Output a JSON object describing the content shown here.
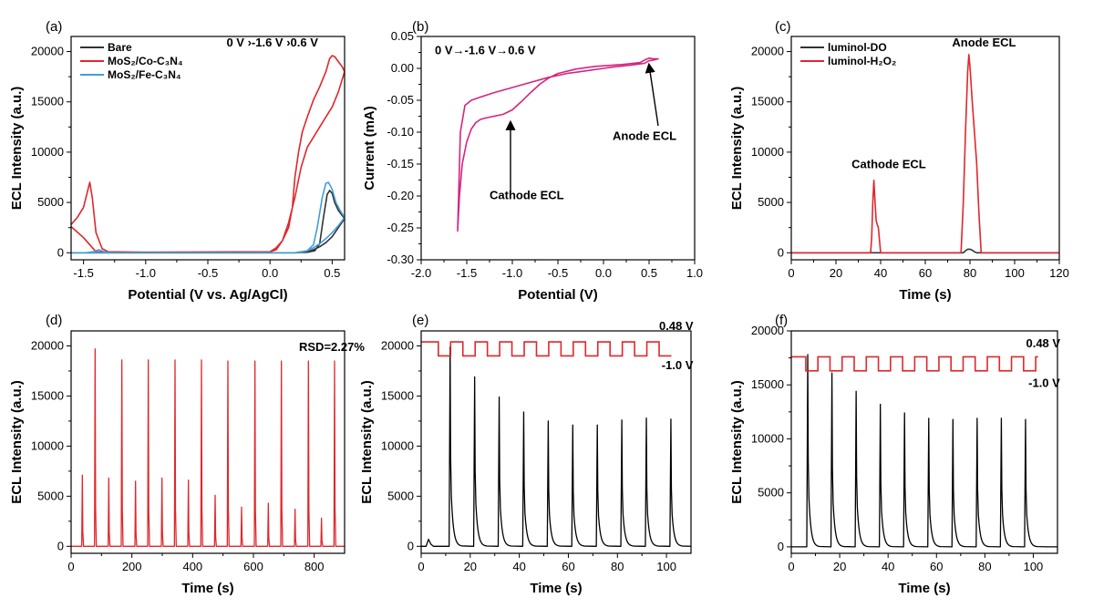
{
  "chart_data": [
    {
      "panel_label": "(a)",
      "type": "line",
      "xlabel": "Potential (V vs. Ag/AgCl)",
      "ylabel": "ECL Intensity (a.u.)",
      "xlim": [
        -1.6,
        0.6
      ],
      "ylim": [
        -700,
        21500
      ],
      "xticks": [
        -1.5,
        -1.0,
        -0.5,
        0.0,
        0.5
      ],
      "xtick_labels": [
        "-1.5",
        "-1.0",
        "-0.5",
        "0.0",
        "0.5"
      ],
      "yticks": [
        0,
        5000,
        10000,
        15000,
        20000
      ],
      "ytick_labels": [
        "0",
        "5000",
        "10000",
        "15000",
        "20000"
      ],
      "legend_placement": "top-left",
      "annotations": [
        {
          "text": "0 V  ›-1.6 V  ›0.6 V",
          "x": -0.35,
          "y": 20500
        }
      ],
      "series": [
        {
          "name": "Bare",
          "color": "#333333",
          "x": [
            -1.6,
            -1.45,
            -1.3,
            0.0,
            0.2,
            0.3,
            0.36,
            0.4,
            0.43,
            0.46,
            0.48,
            0.5,
            0.52,
            0.55,
            0.58,
            0.6,
            0.55,
            0.5,
            0.45,
            0.4,
            0.35,
            0.3,
            0.25,
            0.2,
            0.0,
            -1.0,
            -1.6
          ],
          "y": [
            0,
            0,
            0,
            0,
            0,
            50,
            200,
            900,
            3500,
            5800,
            6200,
            5900,
            5000,
            4200,
            3700,
            3400,
            2500,
            1600,
            1000,
            600,
            300,
            100,
            30,
            0,
            0,
            0,
            0
          ]
        },
        {
          "name": "MoS₂/Co-C₃N₄",
          "color": "#e0272b",
          "x": [
            -1.6,
            -1.55,
            -1.5,
            -1.47,
            -1.45,
            -1.43,
            -1.4,
            -1.35,
            -1.3,
            -1.0,
            0.0,
            0.05,
            0.1,
            0.15,
            0.18,
            0.2,
            0.23,
            0.26,
            0.3,
            0.35,
            0.4,
            0.45,
            0.48,
            0.5,
            0.52,
            0.55,
            0.58,
            0.6,
            0.55,
            0.5,
            0.45,
            0.4,
            0.35,
            0.3,
            0.25,
            0.2,
            0.15,
            0.1,
            0.05,
            0.0,
            -1.0,
            -1.4,
            -1.5,
            -1.6
          ],
          "y": [
            2800,
            3500,
            4500,
            6000,
            7000,
            5500,
            2000,
            400,
            100,
            50,
            100,
            500,
            1200,
            2500,
            4500,
            7500,
            10000,
            12000,
            13500,
            15200,
            16500,
            18000,
            19300,
            19600,
            19500,
            19000,
            18500,
            18000,
            16000,
            14500,
            13500,
            12500,
            11500,
            10500,
            8500,
            5500,
            3000,
            1200,
            300,
            100,
            50,
            100,
            1500,
            2600
          ]
        },
        {
          "name": "MoS₂/Fe-C₃N₄",
          "color": "#3f9fd8",
          "x": [
            -1.6,
            -1.48,
            -1.42,
            -1.38,
            -1.33,
            -1.28,
            0.0,
            0.2,
            0.3,
            0.35,
            0.38,
            0.42,
            0.45,
            0.47,
            0.5,
            0.53,
            0.56,
            0.6,
            0.55,
            0.5,
            0.45,
            0.4,
            0.35,
            0.3,
            0.25,
            0.2,
            0.0,
            -1.0,
            -1.6
          ],
          "y": [
            0,
            0,
            100,
            300,
            100,
            0,
            0,
            0,
            200,
            800,
            2500,
            5500,
            6900,
            7000,
            6300,
            5000,
            4300,
            3500,
            2700,
            2000,
            1400,
            900,
            500,
            200,
            50,
            0,
            0,
            0,
            0
          ]
        }
      ]
    },
    {
      "panel_label": "(b)",
      "type": "line",
      "xlabel": "Potential (V)",
      "ylabel": "Current (mA)",
      "xlim": [
        -2.0,
        1.0
      ],
      "ylim": [
        -0.3,
        0.05
      ],
      "xticks": [
        -2.0,
        -1.5,
        -1.0,
        -0.5,
        0.0,
        0.5,
        1.0
      ],
      "xtick_labels": [
        "-2.0",
        "-1.5",
        "-1.0",
        "-0.5",
        "0.0",
        "0.5",
        "1.0"
      ],
      "yticks": [
        -0.3,
        -0.25,
        -0.2,
        -0.15,
        -0.1,
        -0.05,
        0.0,
        0.05
      ],
      "ytick_labels": [
        "-0.30",
        "-0.25",
        "-0.20",
        "-0.15",
        "-0.10",
        "-0.05",
        "0.00",
        "0.05"
      ],
      "annotations": [
        {
          "text": "0 V→-1.6 V→0.6 V",
          "x": -1.85,
          "y": 0.022
        },
        {
          "text": "Cathode ECL",
          "x": -1.25,
          "y": -0.205
        },
        {
          "text": "Anode ECL",
          "x": 0.1,
          "y": -0.112
        }
      ],
      "series": [
        {
          "name": "",
          "color": "#d6247f",
          "x": [
            0.0,
            -0.2,
            -0.4,
            -0.6,
            -0.8,
            -1.0,
            -1.2,
            -1.35,
            -1.45,
            -1.52,
            -1.57,
            -1.6,
            -1.58,
            -1.55,
            -1.5,
            -1.45,
            -1.4,
            -1.35,
            -1.3,
            -1.2,
            -1.1,
            -1.0,
            -0.9,
            -0.8,
            -0.7,
            -0.6,
            -0.5,
            -0.3,
            -0.1,
            0.0,
            0.2,
            0.4,
            0.45,
            0.5,
            0.55,
            0.6,
            0.55,
            0.5,
            0.45,
            0.3,
            0.1,
            0.0
          ],
          "y": [
            0.0,
            -0.004,
            -0.008,
            -0.014,
            -0.022,
            -0.03,
            -0.038,
            -0.045,
            -0.05,
            -0.058,
            -0.1,
            -0.255,
            -0.2,
            -0.15,
            -0.115,
            -0.095,
            -0.085,
            -0.08,
            -0.078,
            -0.075,
            -0.072,
            -0.065,
            -0.052,
            -0.038,
            -0.025,
            -0.015,
            -0.008,
            -0.001,
            0.003,
            0.004,
            0.006,
            0.009,
            0.013,
            0.016,
            0.015,
            0.015,
            0.013,
            0.012,
            0.008,
            0.005,
            0.002,
            0.0
          ]
        }
      ]
    },
    {
      "panel_label": "(c)",
      "type": "line",
      "xlabel": "Time (s)",
      "ylabel": "ECL Intensity (a.u.)",
      "xlim": [
        0,
        120
      ],
      "ylim": [
        -700,
        21500
      ],
      "xticks": [
        0,
        20,
        40,
        60,
        80,
        100,
        120
      ],
      "xtick_labels": [
        "0",
        "20",
        "40",
        "60",
        "80",
        "100",
        "120"
      ],
      "yticks": [
        0,
        5000,
        10000,
        15000,
        20000
      ],
      "ytick_labels": [
        "0",
        "5000",
        "10000",
        "15000",
        "20000"
      ],
      "legend_placement": "top-left",
      "annotations": [
        {
          "text": "Cathode ECL",
          "x": 27,
          "y": 8400
        },
        {
          "text": "Anode ECL",
          "x": 72,
          "y": 20500
        }
      ],
      "series": [
        {
          "name": "luminol-DO",
          "color": "#333333",
          "x": [
            0,
            77,
            78,
            79,
            80,
            81,
            82,
            83,
            120
          ],
          "y": [
            0,
            0,
            200,
            350,
            350,
            250,
            100,
            0,
            0
          ]
        },
        {
          "name": "luminol-H₂O₂",
          "color": "#e0272b",
          "x": [
            0,
            35.5,
            36,
            36.5,
            37,
            37.5,
            38,
            38.5,
            39,
            39.5,
            40,
            76,
            77,
            78,
            79,
            79.5,
            80,
            81,
            82,
            83,
            84,
            85,
            120
          ],
          "y": [
            0,
            0,
            1500,
            5000,
            7200,
            5000,
            3200,
            2800,
            2500,
            1200,
            0,
            0,
            5000,
            12000,
            18000,
            19700,
            18500,
            15000,
            12000,
            9000,
            4000,
            0,
            0
          ]
        }
      ]
    },
    {
      "panel_label": "(d)",
      "type": "line",
      "xlabel": "Time (s)",
      "ylabel": "ECL Intensity (a.u.)",
      "xlim": [
        0,
        900
      ],
      "ylim": [
        -700,
        21500
      ],
      "xticks": [
        0,
        200,
        400,
        600,
        800
      ],
      "xtick_labels": [
        "0",
        "200",
        "400",
        "600",
        "800"
      ],
      "yticks": [
        0,
        5000,
        10000,
        15000,
        20000
      ],
      "ytick_labels": [
        "0",
        "5000",
        "10000",
        "15000",
        "20000"
      ],
      "annotations": [
        {
          "text": "RSD=2.27%",
          "x": 750,
          "y": 19500
        }
      ],
      "peaks_unit_note": "",
      "series": [
        {
          "name": "",
          "color": "#e0272b",
          "x": [
            38,
            80,
            125,
            168,
            213,
            255,
            300,
            343,
            387,
            430,
            475,
            517,
            562,
            606,
            650,
            693,
            738,
            782,
            825,
            868
          ],
          "y": [
            7100,
            19700,
            6800,
            18600,
            6500,
            18600,
            6800,
            18600,
            6600,
            18600,
            5100,
            18500,
            3900,
            18500,
            4300,
            18500,
            3700,
            18500,
            2800,
            18500
          ]
        }
      ]
    },
    {
      "panel_label": "(e)",
      "type": "line",
      "xlabel": "Time (s)",
      "ylabel": "ECL Intensity (a.u.)",
      "xlim": [
        0,
        110
      ],
      "ylim": [
        -700,
        21500
      ],
      "xticks": [
        0,
        20,
        40,
        60,
        80,
        100
      ],
      "xtick_labels": [
        "0",
        "20",
        "40",
        "60",
        "80",
        "100"
      ],
      "yticks": [
        0,
        5000,
        10000,
        15000,
        20000
      ],
      "ytick_labels": [
        "0",
        "5000",
        "10000",
        "15000",
        "20000"
      ],
      "annotations": [
        {
          "text": "0.48 V",
          "x": 97,
          "y": 21600
        },
        {
          "text": "-1.0 V",
          "x": 98,
          "y": 17700
        }
      ],
      "step_waveform": {
        "high": 20400,
        "low": 19000,
        "start": 0,
        "period": 10,
        "first_transition": 7,
        "end": 102,
        "color": "#e0272b"
      },
      "series": [
        {
          "name": "",
          "color": "#000000",
          "x": [
            12,
            22,
            32,
            42,
            52,
            62,
            72,
            82,
            92,
            102
          ],
          "y": [
            19900,
            16900,
            14900,
            13400,
            12500,
            12100,
            12100,
            12600,
            12800,
            12700
          ]
        }
      ]
    },
    {
      "panel_label": "(f)",
      "type": "line",
      "xlabel": "Time (s)",
      "ylabel": "ECL Intensity (a.u.)",
      "xlim": [
        0,
        110
      ],
      "ylim": [
        -600,
        20000
      ],
      "xticks": [
        0,
        20,
        40,
        60,
        80,
        100
      ],
      "xtick_labels": [
        "0",
        "20",
        "40",
        "60",
        "80",
        "100"
      ],
      "yticks": [
        0,
        5000,
        10000,
        15000,
        20000
      ],
      "ytick_labels": [
        "0",
        "5000",
        "10000",
        "15000",
        "20000"
      ],
      "annotations": [
        {
          "text": "0.48 V",
          "x": 97,
          "y": 18500
        },
        {
          "text": "-1.0 V",
          "x": 98,
          "y": 14800
        }
      ],
      "step_waveform": {
        "high": 17600,
        "low": 16300,
        "start": 0,
        "period": 10,
        "first_transition": 6,
        "end": 102,
        "color": "#e0272b"
      },
      "series": [
        {
          "name": "",
          "color": "#000000",
          "x": [
            7,
            17,
            27,
            37,
            47,
            57,
            67,
            77,
            87,
            97
          ],
          "y": [
            17800,
            16100,
            14400,
            13200,
            12400,
            11900,
            11800,
            11900,
            11900,
            11800
          ]
        }
      ]
    }
  ]
}
